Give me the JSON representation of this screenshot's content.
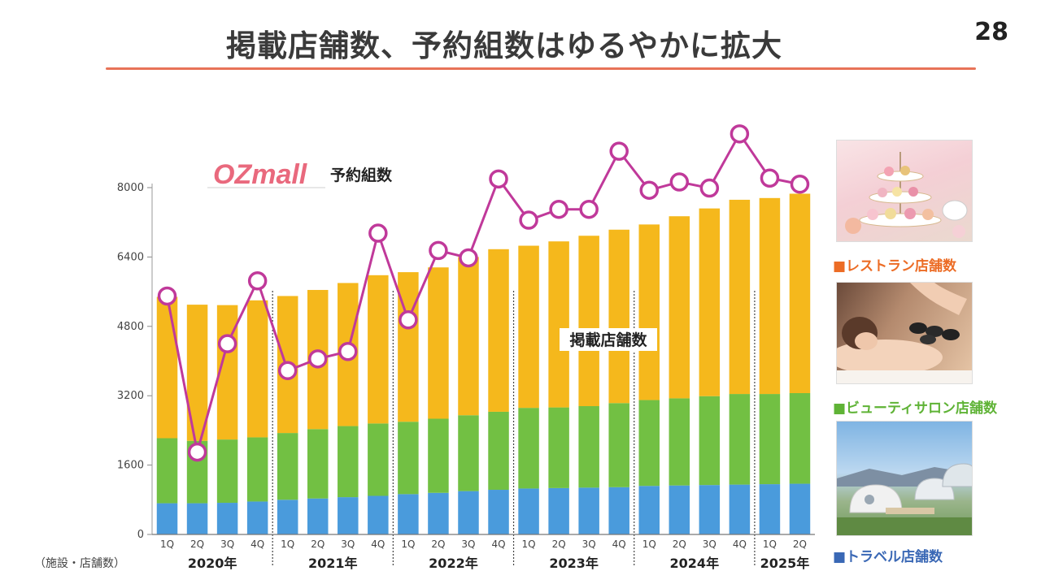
{
  "page": {
    "title": "掲載店舗数、予約組数はゆるやかに拡大",
    "page_number": "28",
    "unit_note": "（施設・店舗数）",
    "logo_text": "OZmall",
    "accent_color": "#e87358"
  },
  "chart_data": {
    "type": "bar",
    "stacked": true,
    "ylim": [
      0,
      8000
    ],
    "yticks": [
      0,
      1600,
      3200,
      4800,
      6400,
      8000
    ],
    "grid": false,
    "categories": [
      "1Q",
      "2Q",
      "3Q",
      "4Q",
      "1Q",
      "2Q",
      "3Q",
      "4Q",
      "1Q",
      "2Q",
      "3Q",
      "4Q",
      "1Q",
      "2Q",
      "3Q",
      "4Q",
      "1Q",
      "2Q",
      "3Q",
      "4Q",
      "1Q",
      "2Q"
    ],
    "years": [
      {
        "label": "2020年",
        "start": 0,
        "end": 3
      },
      {
        "label": "2021年",
        "start": 4,
        "end": 7
      },
      {
        "label": "2022年",
        "start": 8,
        "end": 11
      },
      {
        "label": "2023年",
        "start": 12,
        "end": 15
      },
      {
        "label": "2024年",
        "start": 16,
        "end": 19
      },
      {
        "label": "2025年",
        "start": 20,
        "end": 21
      }
    ],
    "series": [
      {
        "name": "トラベル店舗数",
        "color": "#4a9bdc",
        "values": [
          720,
          720,
          730,
          760,
          800,
          830,
          860,
          890,
          930,
          960,
          1000,
          1030,
          1060,
          1070,
          1080,
          1090,
          1120,
          1130,
          1140,
          1150,
          1160,
          1170
        ]
      },
      {
        "name": "ビューティサロン店舗数",
        "color": "#72c043",
        "values": [
          1500,
          1440,
          1460,
          1480,
          1540,
          1600,
          1640,
          1670,
          1670,
          1710,
          1750,
          1800,
          1860,
          1860,
          1880,
          1940,
          1980,
          2010,
          2050,
          2090,
          2080,
          2090
        ]
      },
      {
        "name": "レストラン店舗数",
        "color": "#f5b81c",
        "values": [
          3260,
          3140,
          3100,
          3160,
          3160,
          3210,
          3300,
          3420,
          3450,
          3490,
          3650,
          3750,
          3740,
          3830,
          3930,
          4000,
          4050,
          4200,
          4330,
          4480,
          4520,
          4600
        ]
      }
    ],
    "line_series": {
      "name": "予約組数",
      "color": "#c0399a",
      "values": [
        5500,
        1900,
        4400,
        5850,
        3780,
        4050,
        4220,
        6950,
        4950,
        6550,
        6380,
        8200,
        7250,
        7500,
        7500,
        8840,
        7940,
        8130,
        7990,
        9240,
        8220,
        8080
      ]
    },
    "annotations": [
      "掲載店舗数"
    ],
    "legend": [
      {
        "label": "■レストラン店舗数",
        "color": "#ec6c25"
      },
      {
        "label": "■ビューティサロン店舗数",
        "color": "#5fb336"
      },
      {
        "label": "■トラベル店舗数",
        "color": "#3a68b5"
      }
    ]
  }
}
